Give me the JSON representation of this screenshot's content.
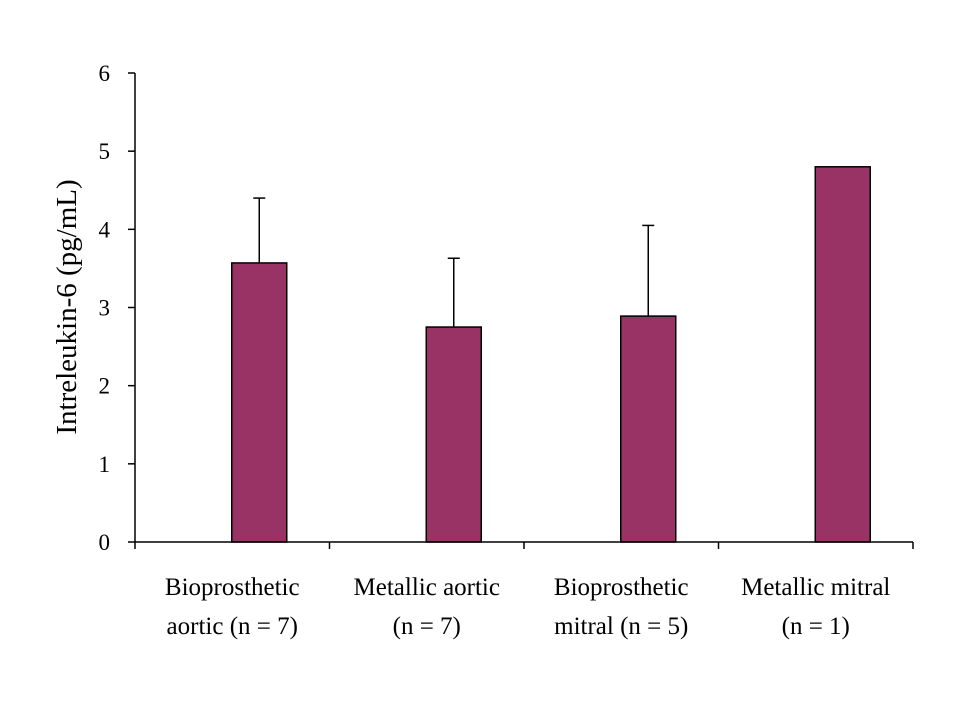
{
  "chart_data": {
    "type": "bar",
    "title": "",
    "xlabel": "",
    "ylabel": "Intreleukin-6 (pg/mL)",
    "ylim": [
      0,
      6
    ],
    "yticks": [
      "0",
      "1",
      "2",
      "3",
      "4",
      "5",
      "6"
    ],
    "categories": [
      [
        "Bioprosthetic",
        "aortic (n = 7)"
      ],
      [
        "Metallic aortic",
        "(n = 7)"
      ],
      [
        "Bioprosthetic",
        "mitral (n = 5)"
      ],
      [
        "Metallic mitral",
        "(n = 1)"
      ]
    ],
    "values": [
      3.57,
      2.75,
      2.89,
      4.8
    ],
    "error_upper": [
      0.83,
      0.88,
      1.16,
      null
    ],
    "bar_color": "#993366",
    "grid": false,
    "legend": "none"
  }
}
